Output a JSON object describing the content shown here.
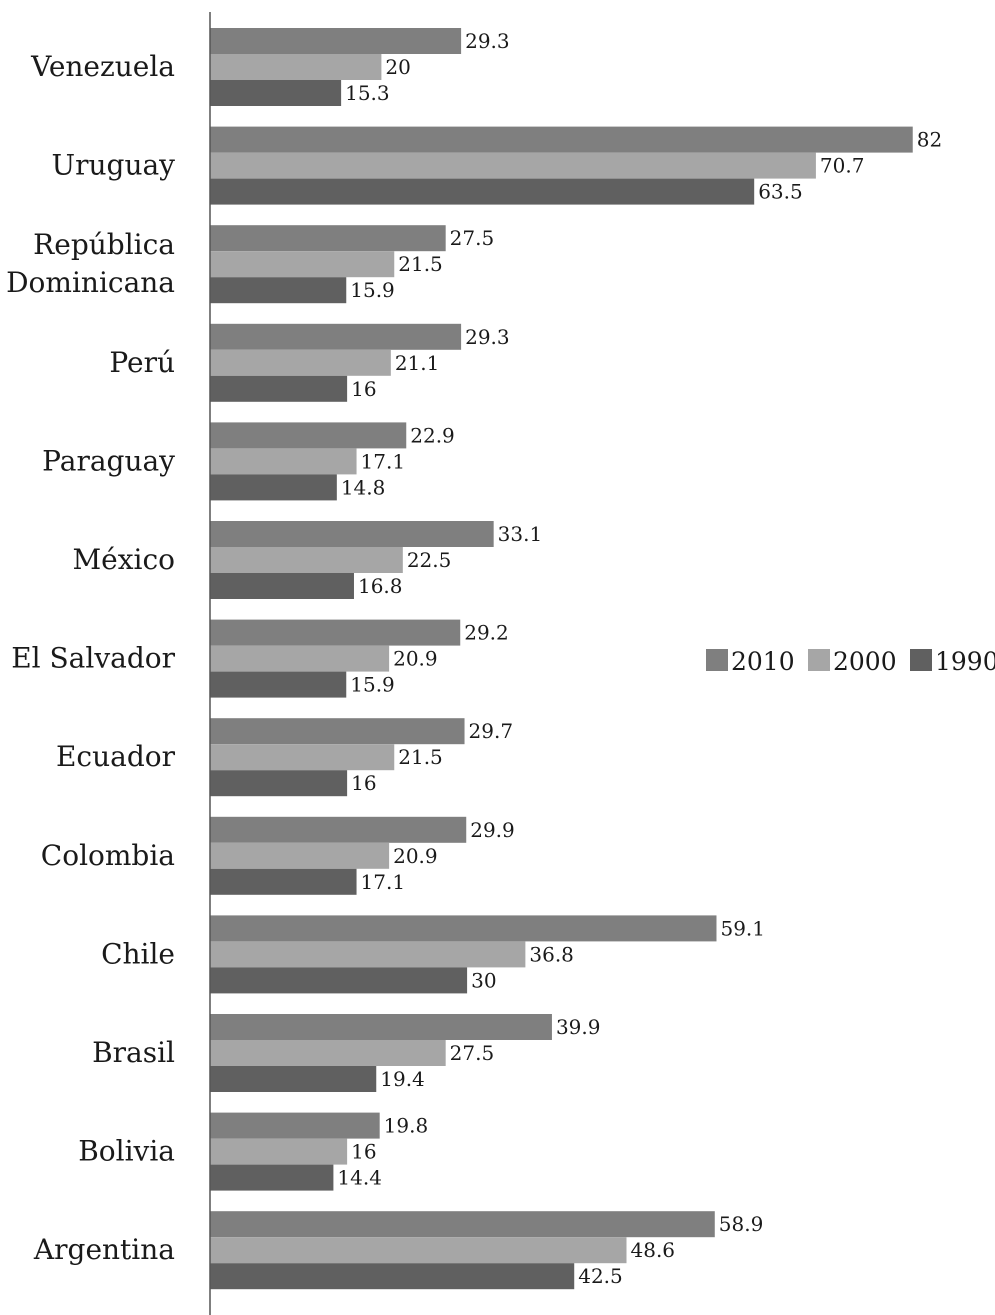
{
  "chart_data": {
    "type": "bar",
    "orientation": "horizontal",
    "categories": [
      "Venezuela",
      "Uruguay",
      "República\nDominicana",
      "Perú",
      "Paraguay",
      "México",
      "El Salvador",
      "Ecuador",
      "Colombia",
      "Chile",
      "Brasil",
      "Bolivia",
      "Argentina"
    ],
    "series": [
      {
        "name": "2010",
        "color": "#7f7f7f",
        "values": [
          29.3,
          82,
          27.5,
          29.3,
          22.9,
          33.1,
          29.2,
          29.7,
          29.9,
          59.1,
          39.9,
          19.8,
          58.9
        ],
        "labels": [
          "29.3",
          "82",
          "27.5",
          "29.3",
          "22.9",
          "33.1",
          "29.2",
          "29.7",
          "29.9",
          "59.1",
          "39.9",
          "19.8",
          "58.9"
        ]
      },
      {
        "name": "2000",
        "color": "#a6a6a6",
        "values": [
          20,
          70.7,
          21.5,
          21.1,
          17.1,
          22.5,
          20.9,
          21.5,
          20.9,
          36.8,
          27.5,
          16,
          48.6
        ],
        "labels": [
          "20",
          "70.7",
          "21.5",
          "21.1",
          "17.1",
          "22.5",
          "20.9",
          "21.5",
          "20.9",
          "36.8",
          "27.5",
          "16",
          "48.6"
        ]
      },
      {
        "name": "1990",
        "color": "#606060",
        "values": [
          15.3,
          63.5,
          15.9,
          16,
          14.8,
          16.8,
          15.9,
          16,
          17.1,
          30,
          19.4,
          14.4,
          42.5
        ],
        "labels": [
          "15.3",
          "63.5",
          "15.9",
          "16",
          "14.8",
          "16.8",
          "15.9",
          "16",
          "17.1",
          "30",
          "19.4",
          "14.4",
          "42.5"
        ]
      }
    ],
    "xlim": [
      0,
      82
    ],
    "grid": false,
    "legend": "right",
    "title": "",
    "xlabel": "",
    "ylabel": ""
  }
}
